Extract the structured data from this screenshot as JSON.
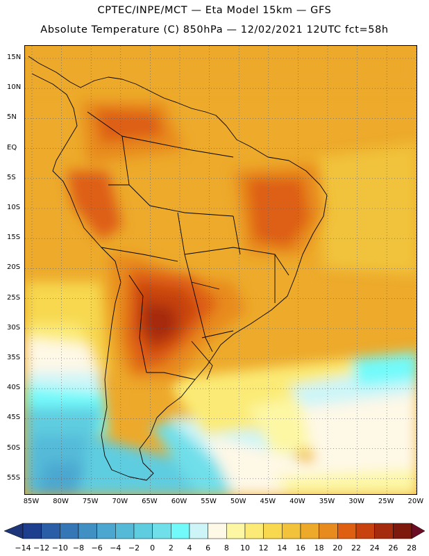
{
  "header": {
    "line1": "CPTEC/INPE/MCT —  Eta Model 15km — GFS",
    "line2": "Absolute Temperature (C) 850hPa — 12/02/2021 12UTC fct=58h"
  },
  "map": {
    "region": "South America",
    "lat_ticks": [
      "15N",
      "10N",
      "5N",
      "EQ",
      "5S",
      "10S",
      "15S",
      "20S",
      "25S",
      "30S",
      "35S",
      "40S",
      "45S",
      "50S",
      "55S"
    ],
    "lon_ticks": [
      "85W",
      "80W",
      "75W",
      "70W",
      "65W",
      "60W",
      "55W",
      "50W",
      "45W",
      "40W",
      "35W",
      "30W",
      "25W",
      "20W"
    ],
    "grid": "dotted"
  },
  "colorbar": {
    "labels": [
      "-14",
      "-12",
      "-10",
      "-8",
      "-6",
      "-4",
      "-2",
      "0",
      "2",
      "4",
      "6",
      "8",
      "10",
      "12",
      "14",
      "16",
      "18",
      "20",
      "22",
      "24",
      "26",
      "28"
    ],
    "colors": [
      "#1d3f8e",
      "#2a5ea6",
      "#3576b6",
      "#4090c4",
      "#4ba7d0",
      "#55bad8",
      "#5fcde0",
      "#6fdfea",
      "#72fafa",
      "#cdf5f8",
      "#fef8e6",
      "#fdf7a4",
      "#fbeb76",
      "#f7d84f",
      "#f1c23a",
      "#eda92a",
      "#e88b1f",
      "#de5e12",
      "#c7420f",
      "#a62a0d",
      "#7d1a0d"
    ],
    "low_arrow_color": "#1e3579",
    "high_arrow_color": "#6b0d24"
  }
}
